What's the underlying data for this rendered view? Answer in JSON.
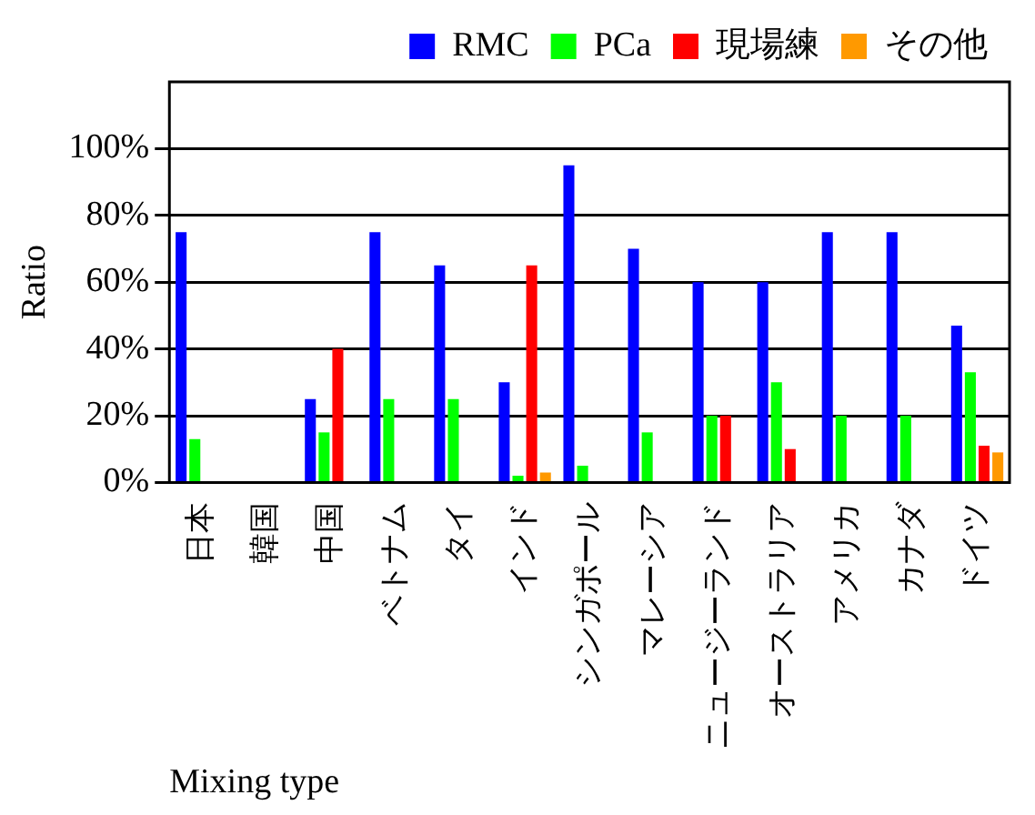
{
  "chart_data": {
    "type": "bar",
    "ylabel": "Ratio",
    "xlabel": "Mixing type",
    "categories": [
      "日本",
      "韓国",
      "中国",
      "ベトナム",
      "タイ",
      "インド",
      "シンガポール",
      "マレーシア",
      "ニュージーランド",
      "オーストラリア",
      "アメリカ",
      "カナダ",
      "ドイツ"
    ],
    "series": [
      {
        "name": "RMC",
        "color": "#0000ff",
        "values": [
          75,
          null,
          25,
          75,
          65,
          30,
          95,
          70,
          60,
          60,
          75,
          75,
          47
        ]
      },
      {
        "name": "PCa",
        "color": "#00ff00",
        "values": [
          13,
          null,
          15,
          25,
          25,
          2,
          5,
          15,
          20,
          30,
          20,
          20,
          33
        ]
      },
      {
        "name": "現場練",
        "color": "#ff0000",
        "values": [
          0,
          null,
          40,
          0,
          0,
          65,
          0,
          0,
          20,
          10,
          0,
          0,
          11
        ]
      },
      {
        "name": "その他",
        "color": "#ff9900",
        "values": [
          0,
          null,
          0,
          0,
          0,
          3,
          0,
          0,
          0,
          0,
          0,
          0,
          9
        ]
      }
    ],
    "ylim": [
      0,
      120
    ],
    "yticks": [
      {
        "value": 0,
        "label": "0%"
      },
      {
        "value": 20,
        "label": "20%"
      },
      {
        "value": 40,
        "label": "40%"
      },
      {
        "value": 60,
        "label": "60%"
      },
      {
        "value": 80,
        "label": "80%"
      },
      {
        "value": 100,
        "label": "100%"
      }
    ],
    "grid": "y",
    "legend": "top"
  }
}
